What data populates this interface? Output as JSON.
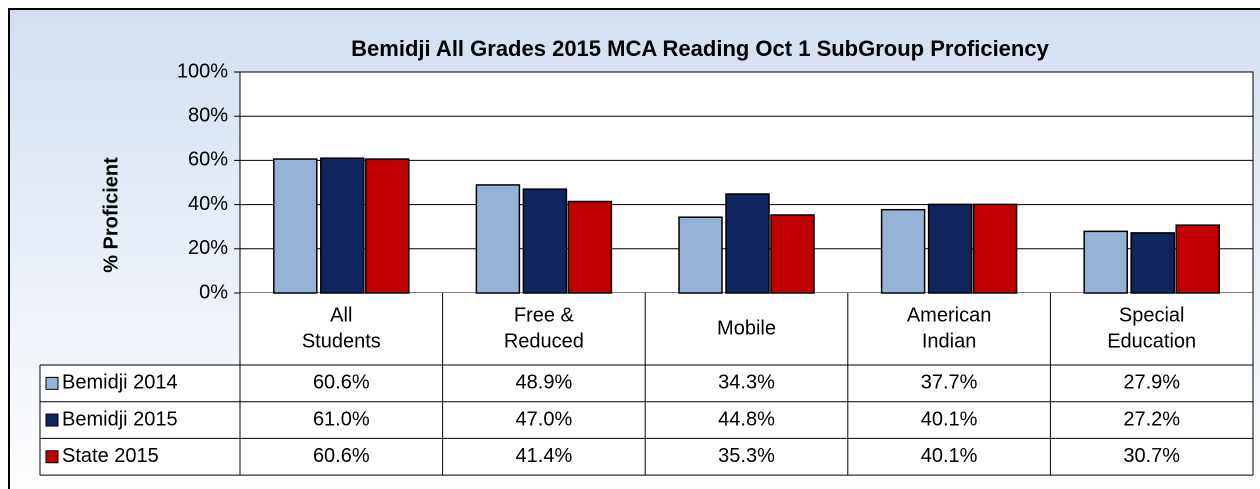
{
  "chart_data": {
    "type": "bar",
    "title": "Bemidji All Grades 2015 MCA Reading Oct 1 SubGroup Proficiency",
    "y_label": "% Proficient",
    "categories": [
      [
        "All",
        "Students"
      ],
      [
        "Free &",
        "Reduced"
      ],
      [
        "Mobile"
      ],
      [
        "American",
        "Indian"
      ],
      [
        "Special",
        "Education"
      ]
    ],
    "series": [
      {
        "name": "Bemidji 2014",
        "color": "#95b3d7",
        "values": [
          60.6,
          48.9,
          34.3,
          37.7,
          27.9
        ],
        "value_labels": [
          "60.6%",
          "48.9%",
          "34.3%",
          "37.7%",
          "27.9%"
        ]
      },
      {
        "name": "Bemidji 2015",
        "color": "#10245e",
        "values": [
          61.0,
          47.0,
          44.8,
          40.1,
          27.2
        ],
        "value_labels": [
          "61.0%",
          "47.0%",
          "44.8%",
          "40.1%",
          "27.2%"
        ]
      },
      {
        "name": "State 2015",
        "color": "#c00000",
        "values": [
          60.6,
          41.4,
          35.3,
          40.1,
          30.7
        ],
        "value_labels": [
          "60.6%",
          "41.4%",
          "35.3%",
          "40.1%",
          "30.7%"
        ]
      }
    ],
    "ylim": [
      0,
      100
    ],
    "yticks": [
      {
        "value": 0,
        "label": "0%"
      },
      {
        "value": 20,
        "label": "20%"
      },
      {
        "value": 40,
        "label": "40%"
      },
      {
        "value": 60,
        "label": "60%"
      },
      {
        "value": 80,
        "label": "80%"
      },
      {
        "value": 100,
        "label": "100%"
      }
    ],
    "grid": true
  }
}
